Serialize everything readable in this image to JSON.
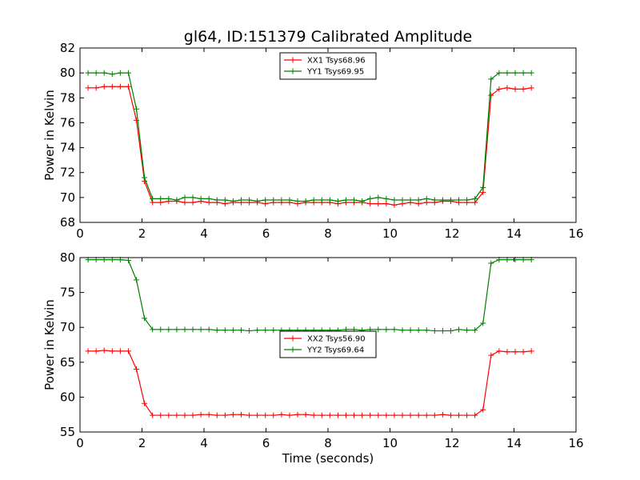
{
  "colors": {
    "xx": "#ff0000",
    "yy": "#008000"
  },
  "chart_data": [
    {
      "type": "line",
      "title": "gl64, ID:151379 Calibrated Amplitude",
      "xlabel": "",
      "ylabel": "Power in Kelvin",
      "xlim": [
        0,
        16
      ],
      "ylim": [
        68,
        82
      ],
      "xticks": [
        0,
        2,
        4,
        6,
        8,
        10,
        12,
        14,
        16
      ],
      "yticks": [
        68,
        70,
        72,
        74,
        76,
        78,
        80,
        82
      ],
      "legend_position": "top-center",
      "x": [
        0.26,
        0.52,
        0.78,
        1.04,
        1.3,
        1.56,
        1.82,
        2.08,
        2.34,
        2.6,
        2.86,
        3.12,
        3.38,
        3.64,
        3.9,
        4.16,
        4.42,
        4.68,
        4.94,
        5.2,
        5.46,
        5.72,
        5.98,
        6.24,
        6.5,
        6.76,
        7.02,
        7.28,
        7.54,
        7.8,
        8.06,
        8.32,
        8.58,
        8.84,
        9.1,
        9.36,
        9.62,
        9.88,
        10.14,
        10.4,
        10.66,
        10.92,
        11.18,
        11.44,
        11.7,
        11.96,
        12.22,
        12.48,
        12.74,
        13.0,
        13.26,
        13.52,
        13.78,
        14.04,
        14.3,
        14.56
      ],
      "series": [
        {
          "name": "XX1 Tsys68.96",
          "color_key": "xx",
          "values": [
            78.8,
            78.8,
            78.9,
            78.9,
            78.9,
            78.9,
            76.2,
            71.3,
            69.6,
            69.6,
            69.7,
            69.7,
            69.6,
            69.6,
            69.7,
            69.6,
            69.6,
            69.5,
            69.6,
            69.6,
            69.6,
            69.6,
            69.5,
            69.6,
            69.6,
            69.6,
            69.5,
            69.6,
            69.6,
            69.6,
            69.6,
            69.5,
            69.6,
            69.6,
            69.6,
            69.5,
            69.5,
            69.5,
            69.4,
            69.5,
            69.6,
            69.5,
            69.6,
            69.6,
            69.7,
            69.7,
            69.6,
            69.6,
            69.6,
            70.4,
            78.2,
            78.7,
            78.8,
            78.7,
            78.7,
            78.8
          ]
        },
        {
          "name": "YY1 Tsys69.95",
          "color_key": "yy",
          "values": [
            80.0,
            80.0,
            80.0,
            79.9,
            80.0,
            80.0,
            77.1,
            71.6,
            69.9,
            69.9,
            69.9,
            69.8,
            70.0,
            70.0,
            69.9,
            69.9,
            69.8,
            69.8,
            69.7,
            69.8,
            69.8,
            69.7,
            69.8,
            69.8,
            69.8,
            69.8,
            69.7,
            69.7,
            69.8,
            69.8,
            69.8,
            69.7,
            69.8,
            69.8,
            69.7,
            69.9,
            70.0,
            69.9,
            69.8,
            69.8,
            69.8,
            69.8,
            69.9,
            69.8,
            69.8,
            69.8,
            69.8,
            69.8,
            69.9,
            70.8,
            79.5,
            80.0,
            80.0,
            80.0,
            80.0,
            80.0
          ]
        }
      ]
    },
    {
      "type": "line",
      "title": "",
      "xlabel": "Time (seconds)",
      "ylabel": "Power in Kelvin",
      "xlim": [
        0,
        16
      ],
      "ylim": [
        55,
        80
      ],
      "xticks": [
        0,
        2,
        4,
        6,
        8,
        10,
        12,
        14,
        16
      ],
      "yticks": [
        55,
        60,
        65,
        70,
        75,
        80
      ],
      "legend_position": "center",
      "x": [
        0.26,
        0.52,
        0.78,
        1.04,
        1.3,
        1.56,
        1.82,
        2.08,
        2.34,
        2.6,
        2.86,
        3.12,
        3.38,
        3.64,
        3.9,
        4.16,
        4.42,
        4.68,
        4.94,
        5.2,
        5.46,
        5.72,
        5.98,
        6.24,
        6.5,
        6.76,
        7.02,
        7.28,
        7.54,
        7.8,
        8.06,
        8.32,
        8.58,
        8.84,
        9.1,
        9.36,
        9.62,
        9.88,
        10.14,
        10.4,
        10.66,
        10.92,
        11.18,
        11.44,
        11.7,
        11.96,
        12.22,
        12.48,
        12.74,
        13.0,
        13.26,
        13.52,
        13.78,
        14.04,
        14.3,
        14.56
      ],
      "series": [
        {
          "name": "XX2 Tsys56.90",
          "color_key": "xx",
          "values": [
            66.6,
            66.6,
            66.7,
            66.6,
            66.6,
            66.6,
            64.0,
            59.1,
            57.4,
            57.4,
            57.4,
            57.4,
            57.4,
            57.4,
            57.5,
            57.5,
            57.4,
            57.4,
            57.5,
            57.5,
            57.4,
            57.4,
            57.4,
            57.4,
            57.5,
            57.4,
            57.5,
            57.5,
            57.4,
            57.4,
            57.4,
            57.4,
            57.4,
            57.4,
            57.4,
            57.4,
            57.4,
            57.4,
            57.4,
            57.4,
            57.4,
            57.4,
            57.4,
            57.4,
            57.5,
            57.4,
            57.4,
            57.4,
            57.4,
            58.2,
            66.0,
            66.6,
            66.5,
            66.5,
            66.5,
            66.6
          ]
        },
        {
          "name": "YY2 Tsys69.64",
          "color_key": "yy",
          "values": [
            79.7,
            79.7,
            79.7,
            79.7,
            79.7,
            79.6,
            76.8,
            71.3,
            69.7,
            69.7,
            69.7,
            69.7,
            69.7,
            69.7,
            69.7,
            69.7,
            69.6,
            69.6,
            69.6,
            69.6,
            69.5,
            69.6,
            69.6,
            69.6,
            69.6,
            69.6,
            69.6,
            69.6,
            69.6,
            69.6,
            69.6,
            69.6,
            69.7,
            69.7,
            69.6,
            69.7,
            69.7,
            69.7,
            69.7,
            69.6,
            69.6,
            69.6,
            69.6,
            69.5,
            69.5,
            69.5,
            69.7,
            69.6,
            69.6,
            70.6,
            79.2,
            79.7,
            79.7,
            79.7,
            79.7,
            79.7
          ]
        }
      ]
    }
  ]
}
